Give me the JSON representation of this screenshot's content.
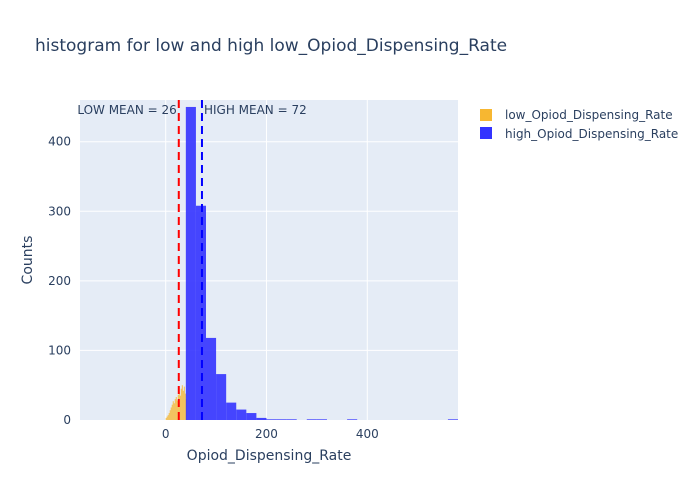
{
  "chart_data": {
    "type": "histogram",
    "title": "histogram for low and high low_Opiod_Dispensing_Rate",
    "xlabel": "Opiod_Dispensing_Rate",
    "ylabel": "Counts",
    "xlim": [
      -170,
      580
    ],
    "ylim": [
      0,
      460
    ],
    "x_ticks": [
      0,
      200,
      400
    ],
    "y_ticks": [
      0,
      100,
      200,
      300,
      400
    ],
    "grid": true,
    "legend_position": "top-right, outside plot",
    "series": [
      {
        "name": "low_Opiod_Dispensing_Rate",
        "color": "#f7b731",
        "bin_width": 2,
        "bins": [
          {
            "x0": 0,
            "x1": 2,
            "count": 3
          },
          {
            "x0": 2,
            "x1": 4,
            "count": 5
          },
          {
            "x0": 4,
            "x1": 6,
            "count": 7
          },
          {
            "x0": 6,
            "x1": 8,
            "count": 10
          },
          {
            "x0": 8,
            "x1": 10,
            "count": 14
          },
          {
            "x0": 10,
            "x1": 12,
            "count": 18
          },
          {
            "x0": 12,
            "x1": 14,
            "count": 22
          },
          {
            "x0": 14,
            "x1": 16,
            "count": 27
          },
          {
            "x0": 16,
            "x1": 18,
            "count": 24
          },
          {
            "x0": 18,
            "x1": 20,
            "count": 30
          },
          {
            "x0": 20,
            "x1": 22,
            "count": 33
          },
          {
            "x0": 22,
            "x1": 24,
            "count": 28
          },
          {
            "x0": 24,
            "x1": 26,
            "count": 36
          },
          {
            "x0": 26,
            "x1": 28,
            "count": 40
          },
          {
            "x0": 28,
            "x1": 30,
            "count": 35
          },
          {
            "x0": 30,
            "x1": 32,
            "count": 45
          },
          {
            "x0": 32,
            "x1": 34,
            "count": 50
          },
          {
            "x0": 34,
            "x1": 36,
            "count": 42
          },
          {
            "x0": 36,
            "x1": 38,
            "count": 48
          },
          {
            "x0": 38,
            "x1": 40,
            "count": 38
          },
          {
            "x0": 40,
            "x1": 42,
            "count": 30
          }
        ]
      },
      {
        "name": "high_Opiod_Dispensing_Rate",
        "color": "#3333ff",
        "bin_width": 20,
        "bins": [
          {
            "x0": 40,
            "x1": 60,
            "count": 450
          },
          {
            "x0": 60,
            "x1": 80,
            "count": 308
          },
          {
            "x0": 80,
            "x1": 100,
            "count": 118
          },
          {
            "x0": 100,
            "x1": 120,
            "count": 66
          },
          {
            "x0": 120,
            "x1": 140,
            "count": 25
          },
          {
            "x0": 140,
            "x1": 160,
            "count": 15
          },
          {
            "x0": 160,
            "x1": 180,
            "count": 10
          },
          {
            "x0": 180,
            "x1": 200,
            "count": 3
          },
          {
            "x0": 200,
            "x1": 220,
            "count": 1
          },
          {
            "x0": 220,
            "x1": 240,
            "count": 1
          },
          {
            "x0": 240,
            "x1": 260,
            "count": 1
          },
          {
            "x0": 280,
            "x1": 300,
            "count": 1
          },
          {
            "x0": 300,
            "x1": 320,
            "count": 1
          },
          {
            "x0": 360,
            "x1": 380,
            "count": 1
          },
          {
            "x0": 560,
            "x1": 580,
            "count": 1
          }
        ]
      }
    ],
    "mean_lines": [
      {
        "label": "LOW MEAN = 26",
        "x": 26,
        "color": "#ff0000",
        "style": "dashed"
      },
      {
        "label": "HIGH MEAN = 72",
        "x": 72,
        "color": "#0000ff",
        "style": "dashed"
      }
    ]
  }
}
